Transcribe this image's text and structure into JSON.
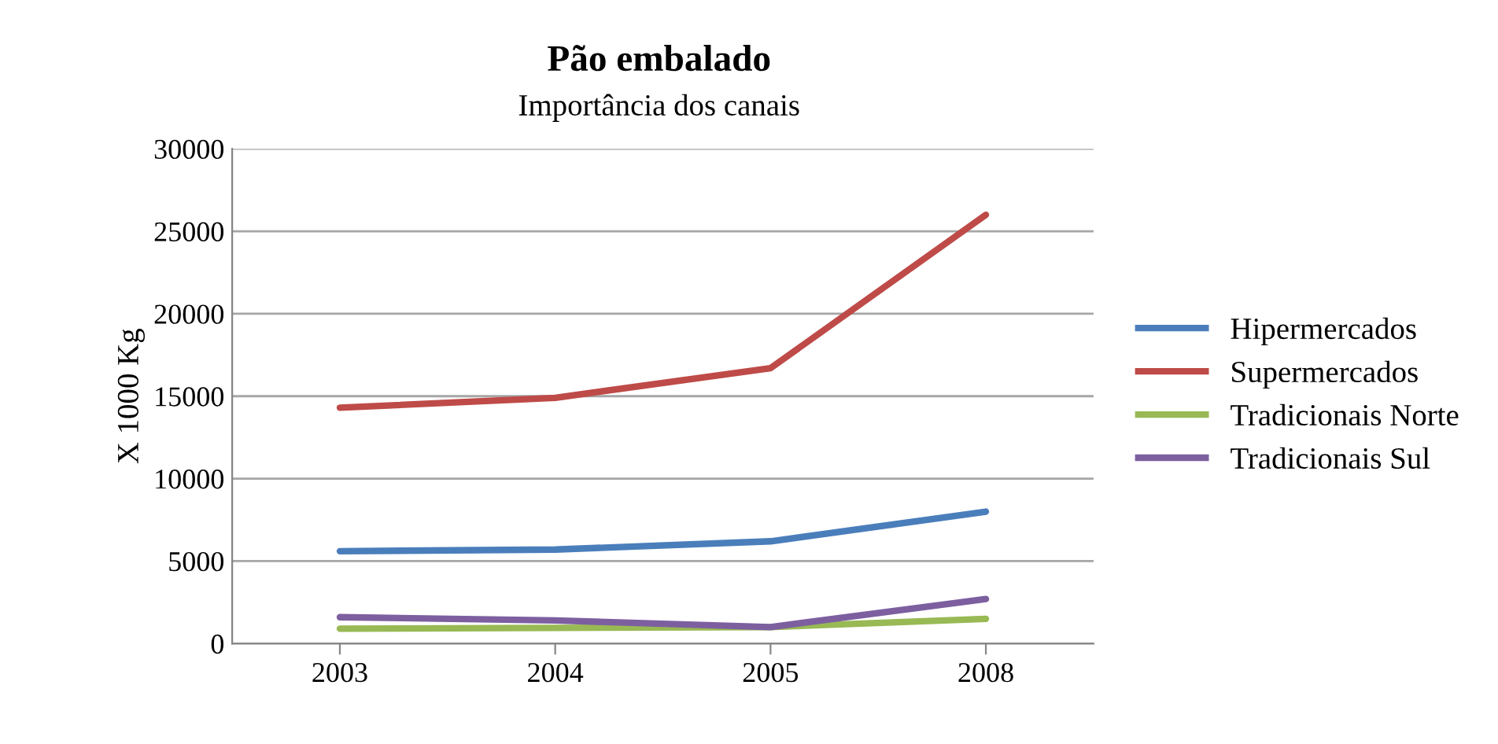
{
  "chart_data": {
    "type": "line",
    "title": "Pão embalado",
    "subtitle": "Importância dos canais",
    "ylabel": "X 1000 Kg",
    "categories": [
      "2003",
      "2004",
      "2005",
      "2008"
    ],
    "series": [
      {
        "name": "Hipermercados",
        "color": "#4a7ebb",
        "values": [
          5600,
          5700,
          6200,
          8000
        ]
      },
      {
        "name": "Supermercados",
        "color": "#be4b48",
        "values": [
          14300,
          14900,
          16700,
          26000
        ]
      },
      {
        "name": "Tradicionais Norte",
        "color": "#98b954",
        "values": [
          900,
          950,
          1000,
          1500
        ]
      },
      {
        "name": "Tradicionais Sul",
        "color": "#7d5fa0",
        "values": [
          1600,
          1400,
          1000,
          2700
        ]
      }
    ],
    "ylim": [
      0,
      30000
    ],
    "yticks": [
      0,
      5000,
      10000,
      15000,
      20000,
      25000,
      30000
    ],
    "grid": "y",
    "legend": "right",
    "line_style": "solid",
    "marker": "none"
  }
}
